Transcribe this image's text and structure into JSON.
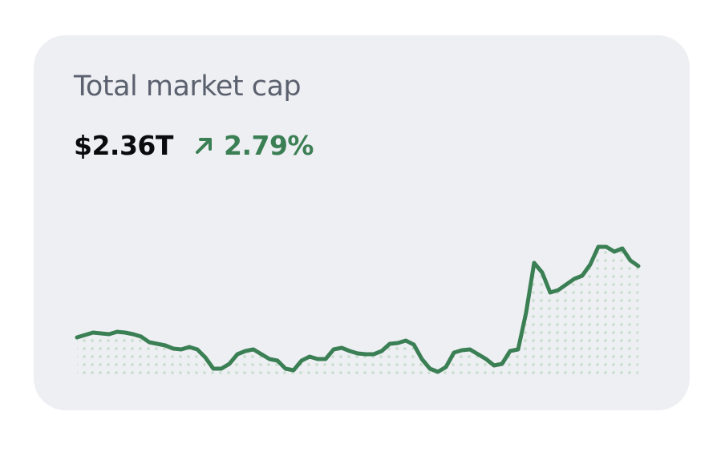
{
  "card": {
    "title": "Total market cap",
    "value": "$2.36T",
    "change": "2.79%"
  },
  "chart_data": {
    "type": "line",
    "values": [
      59,
      62,
      65,
      64,
      63,
      66,
      65,
      63,
      60,
      53,
      51,
      49,
      45,
      44,
      47,
      44,
      34,
      20,
      20,
      26,
      38,
      42,
      44,
      38,
      32,
      30,
      20,
      18,
      30,
      35,
      32,
      32,
      44,
      46,
      42,
      39,
      38,
      38,
      42,
      51,
      52,
      55,
      50,
      32,
      20,
      16,
      22,
      40,
      43,
      44,
      38,
      32,
      24,
      26,
      42,
      44,
      90,
      152,
      140,
      115,
      118,
      125,
      132,
      136,
      150,
      172,
      172,
      166,
      170,
      155,
      148
    ],
    "ylim": [
      0,
      200
    ],
    "color": "#3b7f54"
  }
}
